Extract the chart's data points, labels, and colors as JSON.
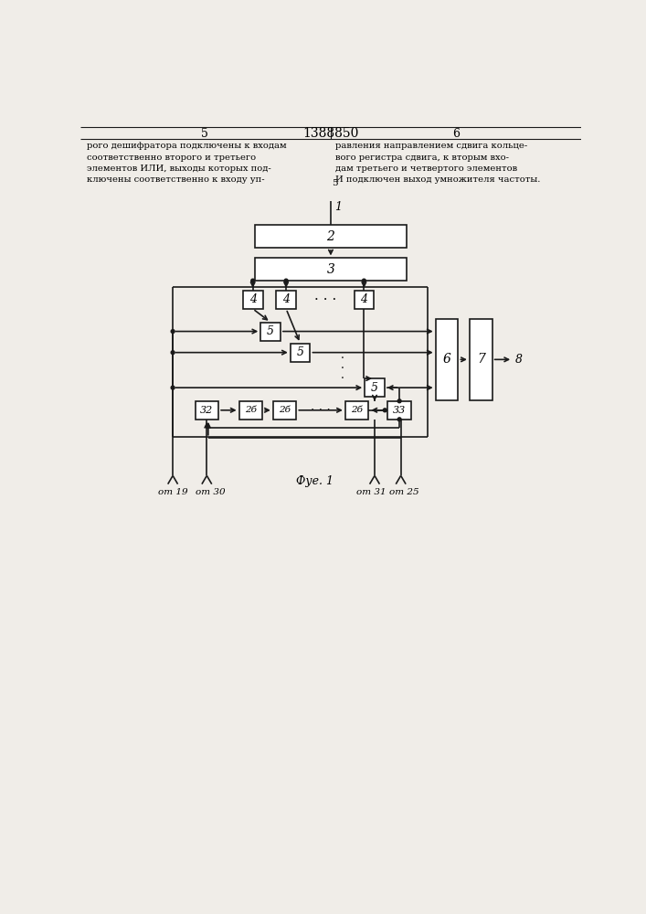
{
  "bg_color": "#f0ede8",
  "line_color": "#1a1a1a",
  "title": "1388850",
  "page_left": "5",
  "page_right": "6",
  "fig_label": "Фуе. 1"
}
